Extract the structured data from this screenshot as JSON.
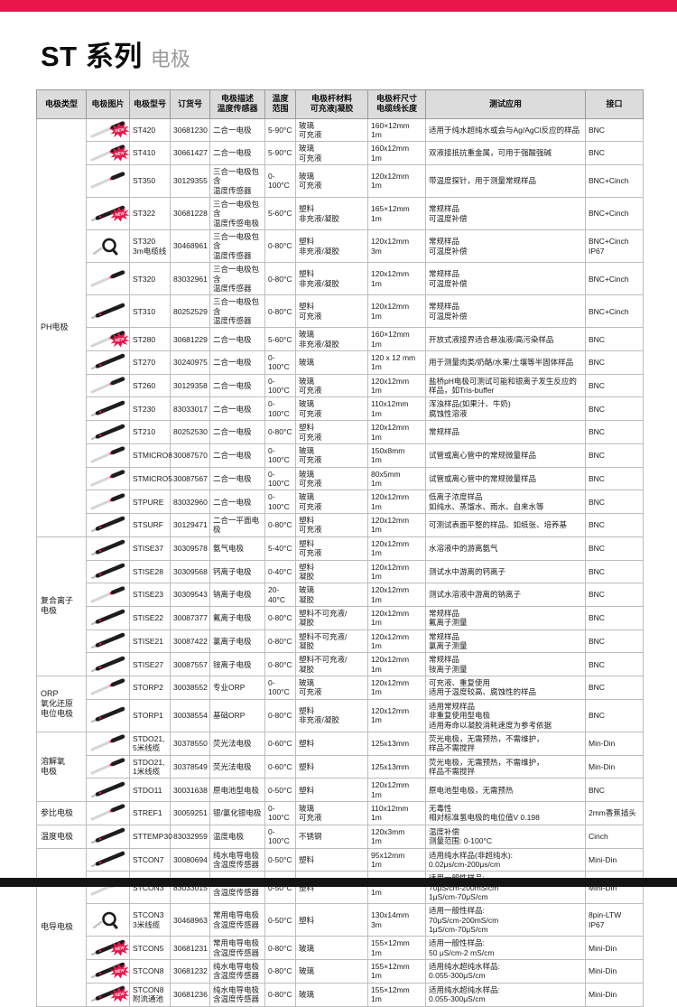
{
  "page": {
    "title": "ST 系列",
    "subtitle": "电极",
    "accent_color": "#e8174b",
    "footer_color": "#141414",
    "new_badge": "NEW"
  },
  "table": {
    "columns": [
      "电极类型",
      "电极图片",
      "电极型号",
      "订货号",
      "电极描述\n温度传感器",
      "温度\n范围",
      "电极杆材料\n可充液|凝胶",
      "电极杆尺寸\n电缆线长度",
      "测试应用",
      "接口"
    ],
    "categories": [
      {
        "label": "PH电极",
        "span": 16
      },
      {
        "label": "复合离子\n电极",
        "span": 6
      },
      {
        "label": "ORP\n氧化还原\n电位电极",
        "span": 2
      },
      {
        "label": "溶解氧\n电极",
        "span": 3
      },
      {
        "label": "参比电极",
        "span": 1
      },
      {
        "label": "温度电极",
        "span": 1
      },
      {
        "label": "电导电极",
        "span": 6
      }
    ],
    "rows": [
      {
        "model": "ST420",
        "order": "30681230",
        "desc": "二合一电极",
        "temp": "5-90°C",
        "material": "玻璃\n可充液",
        "size": "160×12mm\n1m",
        "app": "适用于纯水超纯水或会与Ag/AgCl反应的样品",
        "iface": "BNC",
        "image": "pen-light",
        "new": true
      },
      {
        "model": "ST410",
        "order": "30661427",
        "desc": "二合一电极",
        "temp": "5-90°C",
        "material": "玻璃\n可充液",
        "size": "160x12mm\n1m",
        "app": "双液接抵抗重金属，可用于强酸强碱",
        "iface": "BNC",
        "image": "pen-light",
        "new": true
      },
      {
        "model": "ST350",
        "order": "30129355",
        "desc": "三合一电极包含\n温度传感器",
        "temp": "0-100°C",
        "material": "玻璃\n可充液",
        "size": "120x12mm\n1m",
        "app": "带温度探针，用于测量常规样品",
        "iface": "BNC+Cinch",
        "image": "pen-light",
        "new": false
      },
      {
        "model": "ST322",
        "order": "30681228",
        "desc": "三合一电极包含\n温度传感电极",
        "temp": "5-60°C",
        "material": "塑料\n非充液/凝胶",
        "size": "165×12mm\n1m",
        "app": "常规样品\n可温度补偿",
        "iface": "BNC+Cinch",
        "image": "pen-dark",
        "new": true
      },
      {
        "model": "ST320\n3m电缆线",
        "order": "30468961",
        "desc": "三合一电极包含\n温度传感器",
        "temp": "0-80°C",
        "material": "塑料\n非充液/凝胶",
        "size": "120x12mm\n3m",
        "app": "常规样品\n可温度补偿",
        "iface": "BNC+Cinch\nIP67",
        "image": "coil",
        "new": false
      },
      {
        "model": "ST320",
        "order": "83032961",
        "desc": "三合一电极包含\n温度传感器",
        "temp": "0-80°C",
        "material": "塑料\n非充液/凝胶",
        "size": "120x12mm\n1m",
        "app": "常规样品\n可温度补偿",
        "iface": "BNC+Cinch",
        "image": "pen-light",
        "new": false
      },
      {
        "model": "ST310",
        "order": "80252529",
        "desc": "三合一电极包含\n温度传感器",
        "temp": "0-80°C",
        "material": "塑料\n可充液",
        "size": "120x12mm\n1m",
        "app": "常规样品\n可温度补偿",
        "iface": "BNC+Cinch",
        "image": "pen-dark",
        "new": false
      },
      {
        "model": "ST280",
        "order": "30681229",
        "desc": "二合一电极",
        "temp": "5-60°C",
        "material": "玻璃\n非充液/凝胶",
        "size": "160×12mm\n1m",
        "app": "开放式液接界适合悬浊液/高污染样品",
        "iface": "BNC",
        "image": "pen-light",
        "new": true
      },
      {
        "model": "ST270",
        "order": "30240975",
        "desc": "二合一电极",
        "temp": "0-100°C",
        "material": "玻璃",
        "size": "120 x 12 mm\n1m",
        "app": "用于测量肉类/奶酪/水果/土壤等半固体样品",
        "iface": "BNC",
        "image": "pen-dark",
        "new": false
      },
      {
        "model": "ST260",
        "order": "30129358",
        "desc": "二合一电极",
        "temp": "0-100°C",
        "material": "玻璃\n可充液",
        "size": "120x12mm\n1m",
        "app": "盐桥pH电极可测试可能和银离子发生反应的样品，如Tris-buffer",
        "iface": "BNC",
        "image": "pen-light",
        "new": false
      },
      {
        "model": "ST230",
        "order": "83033017",
        "desc": "二合一电极",
        "temp": "0-100°C",
        "material": "玻璃\n可充液",
        "size": "110x12mm\n1m",
        "app": "浑浊样品(如果汁、牛奶)\n腐蚀性溶液",
        "iface": "BNC",
        "image": "pen-dark",
        "new": false
      },
      {
        "model": "ST210",
        "order": "80252530",
        "desc": "二合一电极",
        "temp": "0-80°C",
        "material": "塑料\n可充液",
        "size": "120x12mm\n1m",
        "app": "常规样品",
        "iface": "BNC",
        "image": "pen-dark",
        "new": false
      },
      {
        "model": "STMICRO8",
        "order": "30087570",
        "desc": "二合一电极",
        "temp": "0-100°C",
        "material": "玻璃\n可充液",
        "size": "150x8mm\n1m",
        "app": "试管或离心管中的常规微量样品",
        "iface": "BNC",
        "image": "pen-light",
        "new": false
      },
      {
        "model": "STMICRO5",
        "order": "30087567",
        "desc": "二合一电极",
        "temp": "0-100°C",
        "material": "玻璃\n可充液",
        "size": "80x5mm\n1m",
        "app": "试管或离心管中的常规微量样品",
        "iface": "BNC",
        "image": "pen-light",
        "new": false
      },
      {
        "model": "STPURE",
        "order": "83032960",
        "desc": "二合一电极",
        "temp": "0-100°C",
        "material": "玻璃\n可充液",
        "size": "120x12mm\n1m",
        "app": "低离子浓度样品\n如纯水、蒸馏水、雨水、自来水等",
        "iface": "BNC",
        "image": "pen-light",
        "new": false
      },
      {
        "model": "STSURF",
        "order": "30129471",
        "desc": "二合一平面电极",
        "temp": "0-80°C",
        "material": "塑料\n可充液",
        "size": "120x12mm\n1m",
        "app": "可测试表面平整的样品、如纸张、培养基",
        "iface": "BNC",
        "image": "pen-dark",
        "new": false
      },
      {
        "model": "STISE37",
        "order": "30309578",
        "desc": "氨气电极",
        "temp": "5-40°C",
        "material": "塑料\n可充液",
        "size": "120x12mm\n1m",
        "app": "水溶液中的游离氨气",
        "iface": "BNC",
        "image": "pen-dark",
        "new": false
      },
      {
        "model": "STISE28",
        "order": "30309568",
        "desc": "钙离子电极",
        "temp": "0-40°C",
        "material": "塑料\n凝胶",
        "size": "120x12mm\n1m",
        "app": "测试水中游离的钙离子",
        "iface": "BNC",
        "image": "pen-dark",
        "new": false
      },
      {
        "model": "STISE23",
        "order": "30309543",
        "desc": "钠离子电极",
        "temp": "20-40°C",
        "material": "玻璃\n凝胶",
        "size": "120x12mm\n1m",
        "app": "测试水溶液中游离的钠离子",
        "iface": "BNC",
        "image": "pen-light",
        "new": false
      },
      {
        "model": "STISE22",
        "order": "30087377",
        "desc": "氟离子电极",
        "temp": "0-80°C",
        "material": "塑料不可充液/\n凝胶",
        "size": "120x12mm\n1m",
        "app": "常规样品\n氟离子测量",
        "iface": "BNC",
        "image": "pen-dark",
        "new": false
      },
      {
        "model": "STISE21",
        "order": "30087422",
        "desc": "氯离子电极",
        "temp": "0-80°C",
        "material": "塑料不可充液/\n凝胶",
        "size": "120x12mm\n1m",
        "app": "常规样品\n氯离子测量",
        "iface": "BNC",
        "image": "pen-dark",
        "new": false
      },
      {
        "model": "STISE27",
        "order": "30087557",
        "desc": "铵离子电极",
        "temp": "0-80°C",
        "material": "塑料不可充液/\n凝胶",
        "size": "120x12mm\n1m",
        "app": "常规样品\n铵离子测量",
        "iface": "BNC",
        "image": "pen-dark",
        "new": false
      },
      {
        "model": "STORP2",
        "order": "30038552",
        "desc": "专业ORP",
        "temp": "0-100°C",
        "material": "玻璃\n可充液",
        "size": "120x12mm\n1m",
        "app": "可充液、重复使用\n适用于温度较高、腐蚀性的样品",
        "iface": "BNC",
        "image": "pen-light",
        "new": false
      },
      {
        "model": "STORP1",
        "order": "30038554",
        "desc": "基础ORP",
        "temp": "0-80°C",
        "material": "塑料\n非充液/凝胶",
        "size": "120x12mm\n1m",
        "app": "适用常规样品\n非重复使用型电极\n适用寿命以凝胶消耗速度为参考依据",
        "iface": "BNC",
        "image": "pen-dark",
        "new": false
      },
      {
        "model": "STDO21,\n5米线缆",
        "order": "30378550",
        "desc": "荧光法电极",
        "temp": "0-60°C",
        "material": "塑料",
        "size": "125x13mm",
        "app": "荧光电极，无需预热，不需维护，\n样品不需搅拌",
        "iface": "Min-Din",
        "image": "pen-light",
        "new": false
      },
      {
        "model": "STDO21,\n1米线缆",
        "order": "30378549",
        "desc": "荧光法电极",
        "temp": "0-60°C",
        "material": "塑料",
        "size": "125x13mm",
        "app": "荧光电极，无需预热，不需维护，\n样品不需搅拌",
        "iface": "Min-Din",
        "image": "pen-light",
        "new": false
      },
      {
        "model": "STDO11",
        "order": "30031638",
        "desc": "原电池型电极",
        "temp": "0-50°C",
        "material": "塑料",
        "size": "120x12mm\n1m",
        "app": "原电池型电极，无需预热",
        "iface": "BNC",
        "image": "pen-dark",
        "new": false
      },
      {
        "model": "STREF1",
        "order": "30059251",
        "desc": "银/氯化银电极",
        "temp": "0-100°C",
        "material": "玻璃\n可充液",
        "size": "110x12mm\n1m",
        "app": "无毒性\n相对标准氢电极的电位值V 0.198",
        "iface": "2mm香蕉插头",
        "image": "pen-light",
        "new": false
      },
      {
        "model": "STTEMP30",
        "order": "83032959",
        "desc": "温度电极",
        "temp": "0-100°C",
        "material": "不锈钢",
        "size": "120x3mm\n1m",
        "app": "温度补偿\n测量范围: 0-100°C",
        "iface": "Cinch",
        "image": "pen-dark",
        "new": false
      },
      {
        "model": "STCON7",
        "order": "30080694",
        "desc": "纯水电导电极\n含温度传感器",
        "temp": "0-50°C",
        "material": "塑料",
        "size": "95x12mm\n1m",
        "app": "适用纯水样品(非超纯水):\n0.02μs/cm-200μs/cm",
        "iface": "Mini-Din",
        "image": "pen-dark",
        "new": false
      },
      {
        "model": "STCON3",
        "order": "83033015",
        "desc": "常用电导电极\n含温度传感器",
        "temp": "0-50°C",
        "material": "塑料",
        "size": "130x14mm\n1m",
        "app": "适用一般性样品:\n70μS/cm-200mS/cm\n1μS/cm-70μS/cm",
        "iface": "Mini-Din",
        "image": "pen-light",
        "new": false
      },
      {
        "model": "STCON3\n3米线缆",
        "order": "30468963",
        "desc": "常用电导电极\n含温度传感器",
        "temp": "0-50°C",
        "material": "塑料",
        "size": "130x14mm\n3m",
        "app": "适用一般性样品:\n70μS/cm-200mS/cm\n1μS/cm-70μS/cm",
        "iface": "8pin-LTW\nIP67",
        "image": "coil",
        "new": false
      },
      {
        "model": "STCON5",
        "order": "30681231",
        "desc": "常用电导电极\n含温度传感器",
        "temp": "0-80°C",
        "material": "玻璃",
        "size": "155×12mm\n1m",
        "app": "适用一般性样品:\n50 μS/cm-2 mS/cm",
        "iface": "Mini-Din",
        "image": "pen-dark",
        "new": true
      },
      {
        "model": "STCON8",
        "order": "30681232",
        "desc": "纯水电导电极\n含温度传感器",
        "temp": "0-80°C",
        "material": "玻璃",
        "size": "155×12mm\n1m",
        "app": "适用纯水超纯水样品:\n0.055-300μS/cm",
        "iface": "Mini-Din",
        "image": "pen-dark",
        "new": true
      },
      {
        "model": "STCON8\n附流通池",
        "order": "30681236",
        "desc": "纯水电导电极\n含温度传感器",
        "temp": "0-80°C",
        "material": "玻璃",
        "size": "155×12mm\n1m",
        "app": "适用纯水超纯水样品:\n0.055-300μS/cm",
        "iface": "Mini-Din",
        "image": "pen-dark",
        "new": true
      }
    ]
  }
}
